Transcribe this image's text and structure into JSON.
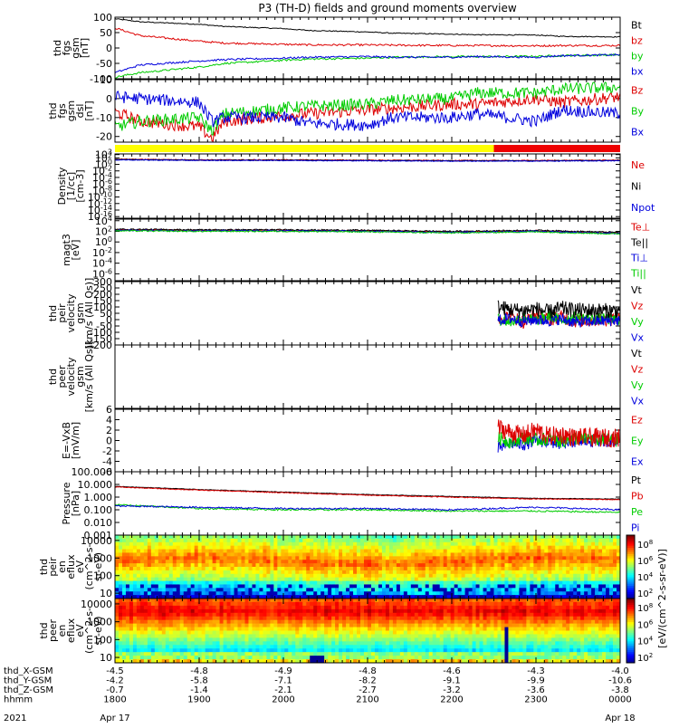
{
  "title": "P3 (TH-D) fields and ground moments overview",
  "chart_data": [
    {
      "type": "line",
      "ylabel": [
        "thd",
        "fgs",
        "gsm",
        "[nT]"
      ],
      "yticks": [
        100,
        50,
        0,
        -50,
        -100
      ],
      "ylim": [
        -100,
        100
      ],
      "series": [
        {
          "name": "Bt",
          "color": "#000000",
          "x": [
            1800,
            1830,
            1900,
            1930,
            2000,
            2030,
            2100,
            2130,
            2200,
            2230,
            2300,
            2330,
            2400
          ],
          "values": [
            95,
            85,
            77,
            70,
            63,
            57,
            52,
            48,
            45,
            43,
            42,
            38,
            36
          ]
        },
        {
          "name": "bz",
          "color": "#dd0000",
          "x": [
            1800,
            1830,
            1900,
            1930,
            2000,
            2030,
            2100,
            2130,
            2200,
            2230,
            2300,
            2330,
            2400
          ],
          "values": [
            65,
            40,
            22,
            16,
            12,
            10,
            10,
            9,
            8,
            8,
            7,
            8,
            8
          ]
        },
        {
          "name": "by",
          "color": "#00cc00",
          "x": [
            1800,
            1830,
            1900,
            1930,
            2000,
            2030,
            2100,
            2130,
            2200,
            2230,
            2300,
            2330,
            2400
          ],
          "values": [
            -95,
            -80,
            -62,
            -50,
            -40,
            -36,
            -33,
            -30,
            -28,
            -28,
            -27,
            -25,
            -22
          ]
        },
        {
          "name": "bx",
          "color": "#0000dd",
          "x": [
            1800,
            1830,
            1900,
            1930,
            2000,
            2030,
            2100,
            2130,
            2200,
            2230,
            2300,
            2330,
            2400
          ],
          "values": [
            -80,
            -55,
            -42,
            -38,
            -33,
            -30,
            -28,
            -30,
            -30,
            -28,
            -30,
            -25,
            -22
          ]
        }
      ]
    },
    {
      "type": "line",
      "ylabel": [
        "thd",
        "fgs",
        "gsm",
        "dsl",
        "[nT]"
      ],
      "yticks": [
        10,
        0,
        -10,
        -20
      ],
      "ylim": [
        -23,
        10
      ],
      "series": [
        {
          "name": "Bz",
          "color": "#dd0000",
          "x": [
            1800,
            1830,
            1900,
            1915,
            1930,
            2000,
            2030,
            2100,
            2130,
            2200,
            2230,
            2300,
            2330,
            2400
          ],
          "values": [
            -7,
            -12,
            -15,
            -21,
            -12,
            -9,
            -8,
            -6,
            -5,
            -3,
            -3,
            0,
            -2,
            1
          ]
        },
        {
          "name": "By",
          "color": "#00cc00",
          "x": [
            1800,
            1830,
            1900,
            1915,
            1930,
            2000,
            2030,
            2100,
            2130,
            2200,
            2230,
            2300,
            2330,
            2400
          ],
          "values": [
            -15,
            -12,
            -10,
            -17,
            -8,
            -5,
            -4,
            -3,
            -1,
            0,
            3,
            3,
            5,
            6
          ]
        },
        {
          "name": "Bx",
          "color": "#0000dd",
          "x": [
            1800,
            1830,
            1900,
            1915,
            1930,
            2000,
            2030,
            2100,
            2130,
            2200,
            2230,
            2300,
            2330,
            2400
          ],
          "values": [
            1,
            0,
            -2,
            -12,
            -10,
            -10,
            -13,
            -14,
            -10,
            -10,
            -8,
            -12,
            -6,
            -8
          ]
        }
      ]
    },
    {
      "type": "bar",
      "segments": [
        {
          "from": 1800,
          "to": 2250,
          "color": "#ffff00"
        },
        {
          "from": 2250,
          "to": 2400,
          "color": "#ee0000"
        }
      ]
    },
    {
      "type": "line",
      "ylabel": [
        "Density",
        "[1/cc]",
        "[cm-3]"
      ],
      "yscale": "log",
      "ytick_exponents": [
        3,
        2,
        0,
        -2,
        -4,
        -6,
        -8,
        -10,
        -12,
        -14,
        -16
      ],
      "ylim": [
        -16.5,
        3.2
      ],
      "series": [
        {
          "name": "Ne",
          "color": "#dd0000",
          "x": [
            1800,
            1900,
            2000,
            2100,
            2200,
            2300,
            2400
          ],
          "values": [
            1.6,
            1.4,
            1.4,
            1.3,
            1.2,
            1.2,
            1.3
          ]
        },
        {
          "name": "Ni",
          "color": "#000000",
          "x": [
            1800,
            1900,
            2000,
            2100,
            2200,
            2300,
            2400
          ],
          "values": [
            1.5,
            1.3,
            1.3,
            1.2,
            1.1,
            1.1,
            1.2
          ]
        },
        {
          "name": "Npot",
          "color": "#0000dd",
          "x": [
            1800,
            1900,
            2000,
            2100,
            2200,
            2300,
            2400
          ],
          "values": [
            1.4,
            1.2,
            1.2,
            1.1,
            1.0,
            1.0,
            1.1
          ]
        }
      ]
    },
    {
      "type": "line",
      "ylabel": [
        "magt3",
        "[eV]"
      ],
      "yscale": "log",
      "ytick_exponents": [
        4,
        2,
        0,
        -2,
        -4,
        -6
      ],
      "ylim": [
        -7.3,
        4.3
      ],
      "series": [
        {
          "name": "Te⊥",
          "color": "#dd0000",
          "x": [
            1800,
            1900,
            2000,
            2100,
            2200,
            2300,
            2400
          ],
          "values": [
            2.3,
            2.2,
            2.2,
            2.1,
            1.9,
            2.1,
            1.7
          ]
        },
        {
          "name": "Te||",
          "color": "#000000",
          "x": [
            1800,
            1900,
            2000,
            2100,
            2200,
            2300,
            2400
          ],
          "values": [
            2.4,
            2.3,
            2.3,
            2.2,
            2.0,
            2.2,
            1.8
          ]
        },
        {
          "name": "Ti⊥",
          "color": "#0000dd",
          "x": [
            1800,
            1900,
            2000,
            2100,
            2200,
            2300,
            2400
          ],
          "values": [
            2.2,
            2.1,
            2.1,
            2.0,
            1.8,
            2.0,
            1.6
          ]
        },
        {
          "name": "Ti||",
          "color": "#00cc00",
          "x": [
            1800,
            1900,
            2000,
            2100,
            2200,
            2300,
            2400
          ],
          "values": [
            2.1,
            2.0,
            2.0,
            1.9,
            1.7,
            1.9,
            1.5
          ]
        }
      ]
    },
    {
      "type": "line",
      "ylabel": [
        "thd",
        "peir",
        "velocity",
        "gsm",
        "[km/s (All Qs)]"
      ],
      "yticks": [
        300,
        250,
        200,
        150,
        100,
        50,
        0,
        -50,
        -100,
        -150,
        -200
      ],
      "ylim": [
        -200,
        300
      ],
      "series": [
        {
          "name": "Vt",
          "color": "#000000",
          "x": [
            2255,
            2270,
            2285,
            2300,
            2315,
            2330,
            2345,
            2400
          ],
          "values": [
            100,
            80,
            70,
            85,
            60,
            90,
            75,
            70
          ]
        },
        {
          "name": "Vz",
          "color": "#dd0000",
          "x": [
            2255,
            2270,
            2285,
            2300,
            2315,
            2330,
            2345,
            2400
          ],
          "values": [
            10,
            30,
            -20,
            40,
            0,
            20,
            -10,
            10
          ]
        },
        {
          "name": "Vy",
          "color": "#00cc00",
          "x": [
            2255,
            2270,
            2285,
            2300,
            2315,
            2330,
            2345,
            2400
          ],
          "values": [
            5,
            -20,
            20,
            -10,
            30,
            -5,
            15,
            0
          ]
        },
        {
          "name": "Vx",
          "color": "#0000dd",
          "x": [
            2255,
            2270,
            2285,
            2300,
            2315,
            2330,
            2345,
            2400
          ],
          "values": [
            -5,
            10,
            -15,
            0,
            -10,
            5,
            -20,
            -5
          ]
        }
      ]
    },
    {
      "type": "line",
      "ylabel": [
        "thd",
        "peer",
        "velocity",
        "gsm",
        "[km/s (All Qs)]"
      ],
      "yticks": [],
      "series": [
        {
          "name": "Vt",
          "color": "#000000",
          "x": [],
          "values": []
        },
        {
          "name": "Vz",
          "color": "#dd0000",
          "x": [],
          "values": []
        },
        {
          "name": "Vy",
          "color": "#00cc00",
          "x": [],
          "values": []
        },
        {
          "name": "Vx",
          "color": "#0000dd",
          "x": [],
          "values": []
        }
      ]
    },
    {
      "type": "line",
      "ylabel": [
        "E=-VxB",
        "[mV/m]"
      ],
      "yticks": [
        6,
        4,
        2,
        0,
        -2,
        -4,
        -6
      ],
      "ylim": [
        -6,
        6
      ],
      "series": [
        {
          "name": "Ez",
          "color": "#dd0000",
          "x": [
            2255,
            2270,
            2285,
            2300,
            2315,
            2330,
            2345,
            2400
          ],
          "values": [
            2.5,
            1.5,
            1,
            2,
            0.8,
            1.2,
            0.6,
            0.5
          ]
        },
        {
          "name": "Ey",
          "color": "#00cc00",
          "x": [
            2255,
            2270,
            2285,
            2300,
            2315,
            2330,
            2345,
            2400
          ],
          "values": [
            0.5,
            -0.3,
            0.5,
            0.1,
            0.3,
            -0.2,
            0.4,
            0
          ]
        },
        {
          "name": "Ex",
          "color": "#0000dd",
          "x": [
            2255,
            2270,
            2285,
            2300,
            2315,
            2330,
            2345,
            2400
          ],
          "values": [
            -1.5,
            -0.5,
            -0.8,
            0,
            -0.3,
            -0.6,
            -0.2,
            0
          ]
        }
      ]
    },
    {
      "type": "line",
      "ylabel": [
        "Pressure",
        "[nPa]"
      ],
      "yscale": "log",
      "yticks": [
        "100.000",
        "10.000",
        "1.000",
        "0.100",
        "0.010",
        "0.001"
      ],
      "ylim": [
        -3,
        2
      ],
      "series": [
        {
          "name": "Pt",
          "color": "#000000",
          "x": [
            1800,
            1900,
            2000,
            2100,
            2200,
            2300,
            2400
          ],
          "values": [
            0.85,
            0.6,
            0.4,
            0.2,
            0.05,
            -0.1,
            -0.15
          ]
        },
        {
          "name": "Pb",
          "color": "#dd0000",
          "x": [
            1800,
            1900,
            2000,
            2100,
            2200,
            2300,
            2400
          ],
          "values": [
            0.8,
            0.55,
            0.35,
            0.15,
            0.0,
            -0.15,
            -0.2
          ]
        },
        {
          "name": "Pe",
          "color": "#00cc00",
          "x": [
            1800,
            1900,
            2000,
            2100,
            2200,
            2300,
            2400
          ],
          "values": [
            -0.6,
            -0.9,
            -1.0,
            -1.0,
            -1.1,
            -1.1,
            -1.2
          ]
        },
        {
          "name": "Pi",
          "color": "#0000dd",
          "x": [
            1800,
            1900,
            2000,
            2100,
            2200,
            2300,
            2400
          ],
          "values": [
            -0.7,
            -0.8,
            -0.9,
            -0.9,
            -1.0,
            -0.8,
            -1.0
          ]
        }
      ]
    },
    {
      "type": "heatmap",
      "ylabel": [
        "thd",
        "peir",
        "en",
        "eflux",
        "eV",
        "(cm^2-s-",
        "sr-eV)"
      ],
      "yscale": "log",
      "yticks": [
        "10000",
        "1000",
        "100",
        "10"
      ],
      "ylim": [
        5,
        20000
      ],
      "colorbar": {
        "label": "[eV/(cm^2-s-sr-eV)]",
        "tick_exponents": [
          8,
          6,
          4,
          2
        ]
      }
    },
    {
      "type": "heatmap",
      "ylabel": [
        "thd",
        "peer",
        "en",
        "eflux",
        "eV",
        "(cm^2-s-",
        "sr-eV)"
      ],
      "yscale": "log",
      "yticks": [
        "10000",
        "1000",
        "100",
        "10"
      ],
      "ylim": [
        5,
        20000
      ],
      "colorbar": {
        "label": "[eV/(cm^2-s-sr-eV)]",
        "tick_exponents": [
          8,
          6,
          4,
          2
        ]
      }
    }
  ],
  "xaxis": {
    "rows": [
      {
        "label": "thd_X-GSM",
        "values": [
          "-4.5",
          "-4.8",
          "-4.9",
          "-4.8",
          "-4.6",
          "-4.3",
          "-4.0"
        ]
      },
      {
        "label": "thd_Y-GSM",
        "values": [
          "-4.2",
          "-5.8",
          "-7.1",
          "-8.2",
          "-9.1",
          "-9.9",
          "-10.6"
        ]
      },
      {
        "label": "thd_Z-GSM",
        "values": [
          "-0.7",
          "-1.4",
          "-2.1",
          "-2.7",
          "-3.2",
          "-3.6",
          "-3.8"
        ]
      },
      {
        "label": "hhmm",
        "values": [
          "1800",
          "1900",
          "2000",
          "2100",
          "2200",
          "2300",
          "0000"
        ]
      }
    ],
    "year": "2021",
    "date_start": "Apr 17",
    "date_end": "Apr 18"
  }
}
